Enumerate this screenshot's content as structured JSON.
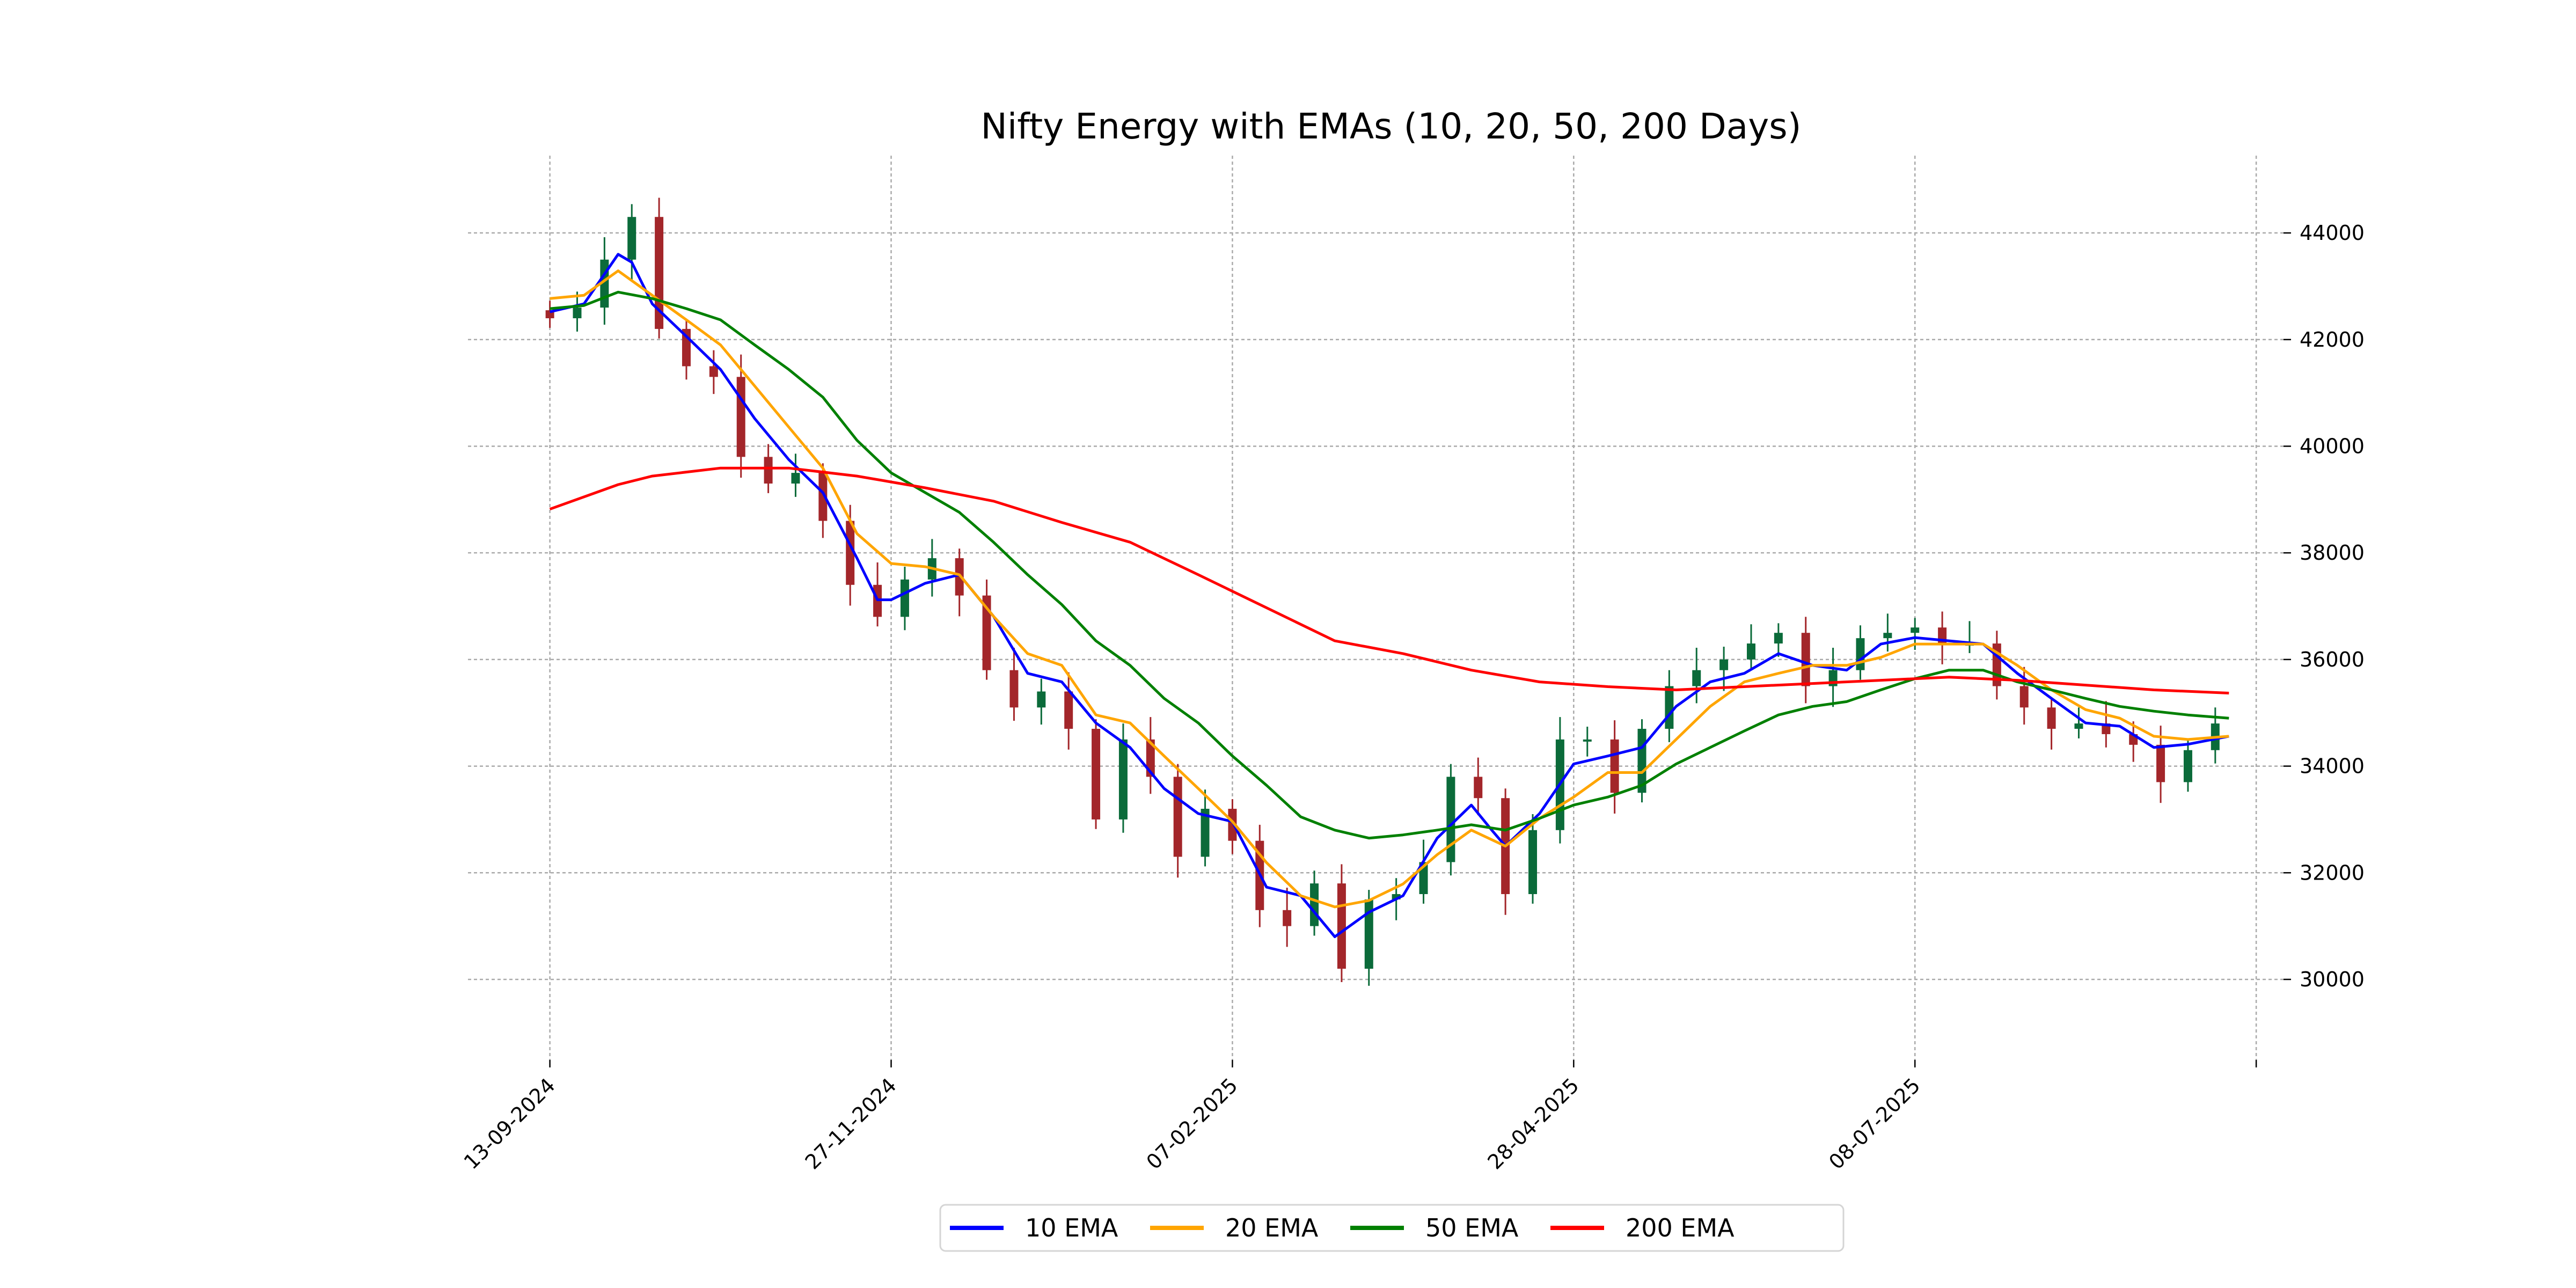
{
  "chart_data": {
    "type": "line",
    "title": "Nifty Energy with EMAs (10, 20, 50, 200 Days)",
    "xlabel": "",
    "ylabel": "",
    "grid": true,
    "legend_position": "bottom-center",
    "x_axis": {
      "type": "trading-day index",
      "range": [
        -12,
        254
      ],
      "ticks": [
        {
          "index": 0,
          "label": "13-09-2024"
        },
        {
          "index": 50,
          "label": "27-11-2024"
        },
        {
          "index": 100,
          "label": "07-02-2025"
        },
        {
          "index": 150,
          "label": "28-04-2025"
        },
        {
          "index": 200,
          "label": "08-07-2025"
        },
        {
          "index": 250,
          "label": ""
        }
      ]
    },
    "y_axis": {
      "range": [
        28490,
        45450
      ],
      "ticks": [
        30000,
        32000,
        34000,
        36000,
        38000,
        40000,
        42000,
        44000
      ],
      "tick_labels": [
        "30000",
        "32000",
        "34000",
        "36000",
        "38000",
        "40000",
        "42000",
        "44000"
      ]
    },
    "candles": {
      "step": 4,
      "closes": [
        42400,
        42600,
        43500,
        44300,
        42200,
        41500,
        41300,
        39800,
        39300,
        39500,
        38600,
        37400,
        36800,
        37500,
        37900,
        37200,
        35800,
        35100,
        35400,
        34700,
        33000,
        34500,
        33800,
        32300,
        33200,
        32600,
        31300,
        31000,
        31800,
        30200,
        31500,
        31600,
        32200,
        33800,
        33400,
        31600,
        32800,
        34500,
        34500,
        33500,
        34700,
        35500,
        35800,
        36000,
        36300,
        36500,
        35500,
        35800,
        36400,
        36500,
        36600,
        36300,
        36300,
        35500,
        35100,
        34700,
        34800,
        34600,
        34400,
        33700,
        34300,
        34800
      ],
      "up_color": "#0b6b3a",
      "down_color": "#a3262a"
    },
    "series": [
      {
        "name": "10 EMA",
        "color": "#0000ff",
        "x": [
          0,
          5,
          10,
          12,
          15,
          20,
          25,
          30,
          35,
          40,
          45,
          48,
          50,
          55,
          60,
          65,
          70,
          75,
          80,
          85,
          90,
          95,
          100,
          105,
          110,
          115,
          120,
          125,
          130,
          135,
          138,
          140,
          145,
          150,
          155,
          160,
          165,
          170,
          175,
          180,
          185,
          190,
          195,
          200,
          205,
          210,
          215,
          220,
          225,
          230,
          235,
          240,
          246
        ],
        "values": [
          42520,
          42670,
          43600,
          43450,
          42670,
          42060,
          41440,
          40520,
          39750,
          39130,
          37900,
          37120,
          37120,
          37430,
          37590,
          36810,
          35740,
          35580,
          34810,
          34350,
          33580,
          33110,
          32960,
          31730,
          31570,
          30800,
          31260,
          31570,
          32650,
          33270,
          32800,
          32500,
          33110,
          34040,
          34190,
          34350,
          35120,
          35580,
          35740,
          36110,
          35890,
          35800,
          36290,
          36410,
          36350,
          36290,
          35740,
          35270,
          34810,
          34750,
          34350,
          34410,
          34560
        ]
      },
      {
        "name": "20 EMA",
        "color": "#ffa500",
        "x": [
          0,
          5,
          10,
          15,
          20,
          25,
          30,
          35,
          40,
          45,
          50,
          55,
          60,
          65,
          70,
          75,
          80,
          85,
          90,
          95,
          100,
          105,
          110,
          115,
          120,
          125,
          130,
          135,
          140,
          145,
          150,
          155,
          160,
          165,
          170,
          175,
          180,
          185,
          190,
          195,
          200,
          205,
          210,
          215,
          220,
          225,
          230,
          235,
          240,
          246
        ],
        "values": [
          42770,
          42830,
          43290,
          42830,
          42370,
          41900,
          41130,
          40360,
          39590,
          38360,
          37800,
          37740,
          37590,
          36810,
          36110,
          35890,
          34960,
          34810,
          34190,
          33580,
          32960,
          32190,
          31570,
          31360,
          31480,
          31790,
          32340,
          32800,
          32500,
          33020,
          33420,
          33880,
          33880,
          34500,
          35120,
          35580,
          35740,
          35890,
          35890,
          36040,
          36290,
          36290,
          36290,
          35890,
          35430,
          35060,
          34900,
          34560,
          34500,
          34560
        ]
      },
      {
        "name": "50 EMA",
        "color": "#008000",
        "x": [
          0,
          5,
          10,
          15,
          20,
          25,
          30,
          35,
          40,
          45,
          50,
          55,
          60,
          65,
          70,
          75,
          80,
          85,
          90,
          95,
          100,
          105,
          110,
          115,
          120,
          125,
          130,
          135,
          140,
          145,
          150,
          155,
          160,
          165,
          170,
          175,
          180,
          185,
          190,
          195,
          200,
          205,
          210,
          215,
          220,
          225,
          230,
          235,
          240,
          246
        ],
        "values": [
          42580,
          42640,
          42890,
          42770,
          42580,
          42370,
          41900,
          41440,
          40920,
          40110,
          39500,
          39130,
          38760,
          38200,
          37590,
          37030,
          36350,
          35890,
          35270,
          34810,
          34190,
          33640,
          33050,
          32800,
          32650,
          32710,
          32800,
          32900,
          32800,
          33020,
          33270,
          33420,
          33640,
          34040,
          34350,
          34660,
          34960,
          35120,
          35210,
          35430,
          35640,
          35800,
          35800,
          35580,
          35430,
          35270,
          35120,
          35030,
          34960,
          34900
        ]
      },
      {
        "name": "200 EMA",
        "color": "#ff0000",
        "x": [
          0,
          10,
          15,
          25,
          35,
          45,
          55,
          65,
          75,
          85,
          95,
          105,
          115,
          125,
          135,
          145,
          155,
          165,
          175,
          185,
          195,
          205,
          215,
          225,
          235,
          246
        ],
        "values": [
          38820,
          39280,
          39440,
          39590,
          39590,
          39440,
          39220,
          38970,
          38570,
          38200,
          37590,
          36970,
          36350,
          36110,
          35800,
          35580,
          35490,
          35430,
          35490,
          35550,
          35610,
          35670,
          35610,
          35520,
          35430,
          35370
        ]
      }
    ]
  }
}
